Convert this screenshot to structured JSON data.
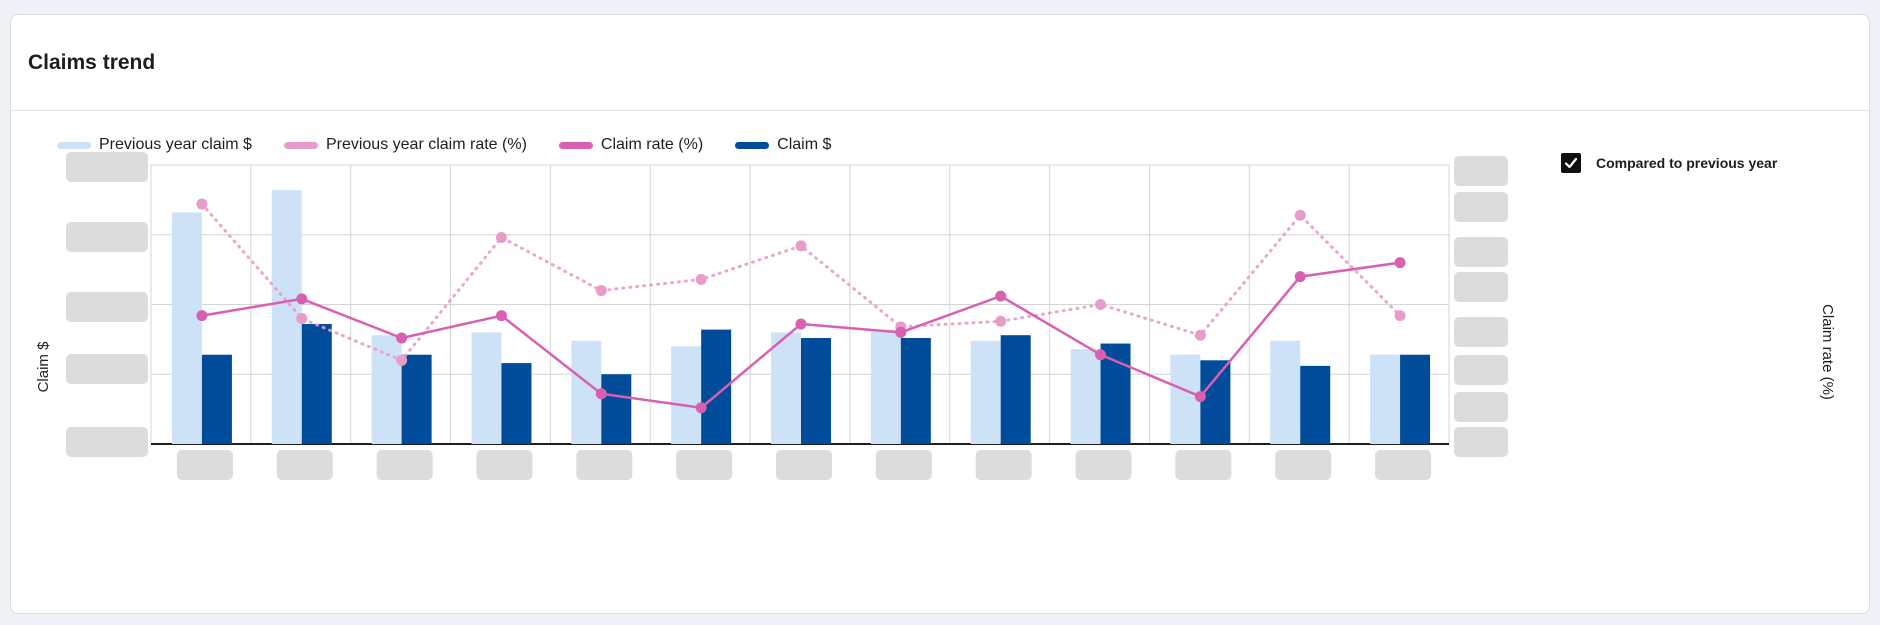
{
  "card": {
    "title": "Claims trend"
  },
  "compare": {
    "label": "Compared to previous year",
    "checked": true
  },
  "colors": {
    "prev_claim": "#cde2f7",
    "prev_rate": "#e89cc9",
    "rate": "#d95fb1",
    "claim": "#004c9a",
    "grid": "#d4d4d4",
    "axis": "#1e1e1e",
    "placeholder": "#d6d6d6"
  },
  "chart_data": {
    "type": "bar+line",
    "title": "Claims trend",
    "ylabel_left": "Claim $",
    "ylabel_right": "Claim rate (%)",
    "tick_labels": "blurred (not legible)",
    "category_count": 13,
    "ylim_left": [
      0,
      100
    ],
    "ylim_right": [
      0,
      100
    ],
    "grid": true,
    "legend_position": "top-left",
    "series": [
      {
        "name": "Previous year claim $",
        "type": "bar",
        "axis": "left",
        "values": [
          83,
          91,
          39,
          40,
          37,
          35,
          40,
          41,
          37,
          34,
          32,
          37,
          32
        ]
      },
      {
        "name": "Claim $",
        "type": "bar",
        "axis": "left",
        "values": [
          32,
          43,
          32,
          29,
          25,
          41,
          38,
          38,
          39,
          36,
          30,
          28,
          32
        ]
      },
      {
        "name": "Previous year claim rate (%)",
        "type": "line",
        "style": "dotted",
        "axis": "right",
        "values": [
          86,
          45,
          30,
          74,
          55,
          59,
          71,
          42,
          44,
          50,
          39,
          82,
          46
        ]
      },
      {
        "name": "Claim rate (%)",
        "type": "line",
        "style": "solid",
        "axis": "right",
        "values": [
          46,
          52,
          38,
          46,
          18,
          13,
          43,
          40,
          53,
          32,
          17,
          60,
          65
        ]
      }
    ]
  },
  "legend": [
    {
      "label": "Previous year claim $",
      "color": "#cde2f7"
    },
    {
      "label": "Previous year claim rate (%)",
      "color": "#e89cc9"
    },
    {
      "label": "Claim rate (%)",
      "color": "#d95fb1"
    },
    {
      "label": "Claim $",
      "color": "#004c9a"
    }
  ]
}
